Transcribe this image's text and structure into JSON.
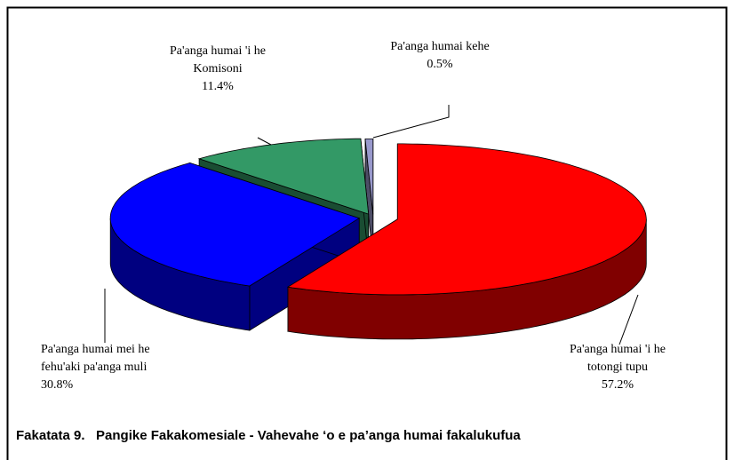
{
  "chart_data": {
    "type": "pie3d",
    "title": "Fakatata 9.   Pangike Fakakomesiale - Vahevahe ‘o e pa’anga humai fakalukufua",
    "series": [
      {
        "name": "Pa'anga humai 'i he totongi tupu",
        "color": "#ff0000",
        "values": [
          57.2
        ],
        "value_labels": [
          "57.2%"
        ]
      },
      {
        "name": "Pa'anga humai mei he fehu'aki pa'anga muli",
        "color": "#0000ff",
        "values": [
          30.8
        ],
        "value_labels": [
          "30.8%"
        ]
      },
      {
        "name": "Pa'anga humai 'i he Komisoni",
        "color": "#339966",
        "values": [
          11.4
        ],
        "value_labels": [
          "11.4%"
        ]
      },
      {
        "name": "Pa'anga humai kehe",
        "color": "#9999cc",
        "values": [
          0.5
        ],
        "value_labels": [
          "0.5%"
        ]
      }
    ]
  }
}
